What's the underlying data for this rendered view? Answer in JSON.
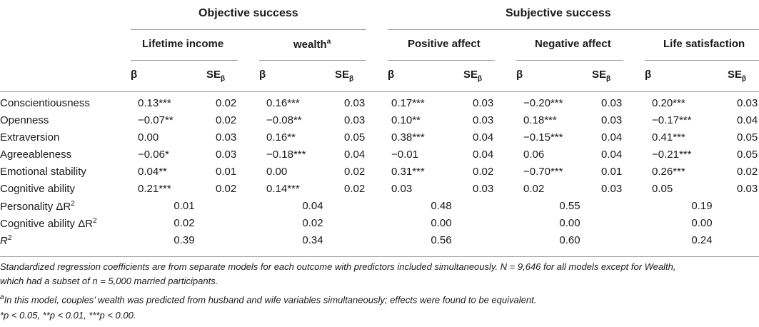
{
  "groups": {
    "objective": "Objective success",
    "subjective": "Subjective success"
  },
  "outcomes": {
    "lifetime_income": "Lifetime income",
    "wealth": "wealth",
    "wealth_sup": "a",
    "positive_affect": "Positive affect",
    "negative_affect": "Negative affect",
    "life_satisfaction": "Life satisfaction"
  },
  "stat_labels": {
    "beta": "β",
    "se": "SE",
    "se_sub": "β"
  },
  "rows": [
    {
      "label": "Conscientiousness",
      "values": [
        "0.13***",
        "0.02",
        "0.16***",
        "0.03",
        "0.17***",
        "0.03",
        "−0.20***",
        "0.03",
        "0.20***",
        "0.03"
      ]
    },
    {
      "label": "Openness",
      "values": [
        "−0.07**",
        "0.02",
        "−0.08**",
        "0.03",
        "0.10**",
        "0.03",
        "0.18***",
        "0.03",
        "−0.17***",
        "0.04"
      ]
    },
    {
      "label": "Extraversion",
      "values": [
        "0.00",
        "0.03",
        "0.16**",
        "0.05",
        "0.38***",
        "0.04",
        "−0.15***",
        "0.04",
        "0.41***",
        "0.05"
      ]
    },
    {
      "label": "Agreeableness",
      "values": [
        "−0.06*",
        "0.03",
        "−0.18***",
        "0.04",
        "−0.01",
        "0.04",
        "0.06",
        "0.04",
        "−0.21***",
        "0.05"
      ]
    },
    {
      "label": "Emotional stability",
      "values": [
        "0.04**",
        "0.01",
        "0.00",
        "0.02",
        "0.31***",
        "0.02",
        "−0.70***",
        "0.01",
        "0.26***",
        "0.02"
      ]
    },
    {
      "label": "Cognitive ability",
      "values": [
        "0.21***",
        "0.02",
        "0.14***",
        "0.02",
        "0.03",
        "0.03",
        "0.02",
        "0.03",
        "0.05",
        "0.03"
      ]
    }
  ],
  "summary_rows": [
    {
      "label": "Personality ΔR",
      "sup": "2",
      "values": [
        "0.01",
        "0.04",
        "0.48",
        "0.55",
        "0.19"
      ]
    },
    {
      "label": "Cognitive ability ΔR",
      "sup": "2",
      "values": [
        "0.02",
        "0.02",
        "0.00",
        "0.00",
        "0.00"
      ]
    },
    {
      "label": "R",
      "sup": "2",
      "values": [
        "0.39",
        "0.34",
        "0.56",
        "0.60",
        "0.24"
      ]
    }
  ],
  "notes": {
    "line1": "Standardized regression coefficients are from separate models for each outcome with predictors included simultaneously. N = 9,646 for all models except for Wealth,",
    "line2": "which had a subset of n = 5,000 married participants.",
    "footnote_mark": "a",
    "footnote": "In this model, couples’ wealth was predicted from husband and wife variables simultaneously; effects were found to be equivalent.",
    "significance": "*p < 0.05, **p < 0.01, ***p < 0.00."
  }
}
